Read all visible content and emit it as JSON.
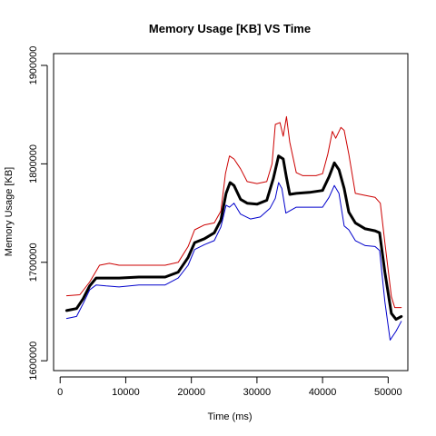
{
  "chart_data": {
    "type": "line",
    "title": "Memory Usage [KB]  VS  Time",
    "xlabel": "Time (ms)",
    "ylabel": "Memory Usage [KB]",
    "xlim": [
      -1000,
      53000
    ],
    "ylim": [
      1590000,
      1912000
    ],
    "x_ticks": [
      0,
      10000,
      20000,
      30000,
      40000,
      50000
    ],
    "x_tick_labels": [
      "0",
      "10000",
      "20000",
      "30000",
      "40000",
      "50000"
    ],
    "y_ticks": [
      1600000,
      1700000,
      1800000,
      1900000
    ],
    "y_tick_labels": [
      "1600000",
      "1700000",
      "1800000",
      "1900000"
    ],
    "grid": false,
    "legend": "none",
    "series": [
      {
        "color": "#cc0000",
        "line_width": 1,
        "points": [
          [
            1000,
            1666000
          ],
          [
            3000,
            1667000
          ],
          [
            4500,
            1680000
          ],
          [
            6000,
            1697000
          ],
          [
            7500,
            1699000
          ],
          [
            9000,
            1697000
          ],
          [
            12000,
            1697000
          ],
          [
            16000,
            1697000
          ],
          [
            18000,
            1700000
          ],
          [
            19500,
            1716000
          ],
          [
            20500,
            1733000
          ],
          [
            22000,
            1738000
          ],
          [
            23500,
            1740000
          ],
          [
            24500,
            1752000
          ],
          [
            25200,
            1790000
          ],
          [
            25800,
            1808000
          ],
          [
            26500,
            1805000
          ],
          [
            27500,
            1795000
          ],
          [
            28500,
            1782000
          ],
          [
            30000,
            1780000
          ],
          [
            31500,
            1782000
          ],
          [
            32300,
            1800000
          ],
          [
            32800,
            1840000
          ],
          [
            33500,
            1842000
          ],
          [
            34000,
            1828000
          ],
          [
            34500,
            1848000
          ],
          [
            35000,
            1822000
          ],
          [
            36000,
            1791000
          ],
          [
            37000,
            1788000
          ],
          [
            39000,
            1788000
          ],
          [
            40000,
            1790000
          ],
          [
            40800,
            1810000
          ],
          [
            41500,
            1833000
          ],
          [
            42000,
            1826000
          ],
          [
            42800,
            1837000
          ],
          [
            43300,
            1834000
          ],
          [
            44000,
            1810000
          ],
          [
            45000,
            1770000
          ],
          [
            46500,
            1768000
          ],
          [
            48000,
            1766000
          ],
          [
            48800,
            1760000
          ],
          [
            49500,
            1720000
          ],
          [
            50500,
            1665000
          ],
          [
            51000,
            1654000
          ],
          [
            52000,
            1654000
          ]
        ]
      },
      {
        "color": "#000000",
        "line_width": 3,
        "points": [
          [
            1000,
            1651000
          ],
          [
            2500,
            1653000
          ],
          [
            3500,
            1663000
          ],
          [
            4500,
            1676000
          ],
          [
            5500,
            1684000
          ],
          [
            7000,
            1684000
          ],
          [
            9000,
            1684000
          ],
          [
            12000,
            1685000
          ],
          [
            16000,
            1685000
          ],
          [
            18000,
            1690000
          ],
          [
            19500,
            1705000
          ],
          [
            20500,
            1720000
          ],
          [
            22000,
            1724000
          ],
          [
            23500,
            1730000
          ],
          [
            24500,
            1743000
          ],
          [
            25300,
            1770000
          ],
          [
            25900,
            1781000
          ],
          [
            26500,
            1778000
          ],
          [
            27500,
            1764000
          ],
          [
            28500,
            1760000
          ],
          [
            30000,
            1759000
          ],
          [
            31500,
            1763000
          ],
          [
            32500,
            1785000
          ],
          [
            33300,
            1808000
          ],
          [
            34000,
            1805000
          ],
          [
            34500,
            1786000
          ],
          [
            35000,
            1769000
          ],
          [
            36000,
            1770000
          ],
          [
            38000,
            1771000
          ],
          [
            40000,
            1773000
          ],
          [
            41000,
            1787000
          ],
          [
            41800,
            1801000
          ],
          [
            42500,
            1794000
          ],
          [
            43300,
            1775000
          ],
          [
            44000,
            1751000
          ],
          [
            45000,
            1740000
          ],
          [
            46500,
            1734000
          ],
          [
            48000,
            1732000
          ],
          [
            48700,
            1730000
          ],
          [
            49500,
            1690000
          ],
          [
            50500,
            1648000
          ],
          [
            51200,
            1642000
          ],
          [
            52000,
            1645000
          ]
        ]
      },
      {
        "color": "#0000cc",
        "line_width": 1,
        "points": [
          [
            1000,
            1643000
          ],
          [
            2500,
            1645000
          ],
          [
            3500,
            1658000
          ],
          [
            4500,
            1672000
          ],
          [
            5500,
            1677000
          ],
          [
            7000,
            1676000
          ],
          [
            9000,
            1675000
          ],
          [
            12000,
            1677000
          ],
          [
            16000,
            1677000
          ],
          [
            18000,
            1684000
          ],
          [
            19500,
            1697000
          ],
          [
            20500,
            1713000
          ],
          [
            22000,
            1718000
          ],
          [
            23500,
            1722000
          ],
          [
            24500,
            1736000
          ],
          [
            25300,
            1758000
          ],
          [
            25800,
            1756000
          ],
          [
            26500,
            1760000
          ],
          [
            27500,
            1749000
          ],
          [
            29000,
            1744000
          ],
          [
            30500,
            1746000
          ],
          [
            32000,
            1755000
          ],
          [
            32800,
            1765000
          ],
          [
            33300,
            1781000
          ],
          [
            33800,
            1775000
          ],
          [
            34400,
            1750000
          ],
          [
            36000,
            1756000
          ],
          [
            38000,
            1756000
          ],
          [
            40000,
            1756000
          ],
          [
            41000,
            1766000
          ],
          [
            41800,
            1778000
          ],
          [
            42500,
            1770000
          ],
          [
            43300,
            1737000
          ],
          [
            44000,
            1733000
          ],
          [
            45000,
            1722000
          ],
          [
            46500,
            1717000
          ],
          [
            48000,
            1716000
          ],
          [
            48700,
            1712000
          ],
          [
            49500,
            1660000
          ],
          [
            50300,
            1621000
          ],
          [
            51200,
            1630000
          ],
          [
            52000,
            1640000
          ]
        ]
      }
    ]
  }
}
